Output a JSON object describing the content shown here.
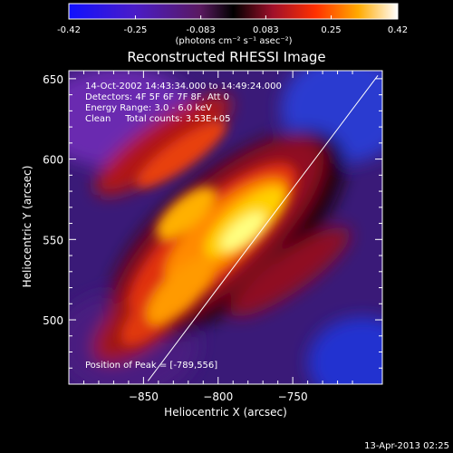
{
  "chart_data": {
    "type": "heatmap",
    "title": "Reconstructed RHESSI Image",
    "xlabel": "Heliocentric X (arcsec)",
    "ylabel": "Heliocentric Y (arcsec)",
    "colorbar": {
      "min": -0.42,
      "max": 0.42,
      "ticks": [
        "-0.42",
        "-0.25",
        "-0.083",
        "0.083",
        "0.25",
        "0.42"
      ],
      "tick_values": [
        -0.42,
        -0.25,
        -0.083,
        0.083,
        0.25,
        0.42
      ],
      "unit_label": "(photons cm⁻² s⁻¹ asec⁻²)"
    },
    "xlim": [
      -900,
      -690
    ],
    "ylim": [
      460,
      655
    ],
    "xticks": [
      -850,
      -800,
      -750
    ],
    "xtick_labels": [
      "−850",
      "−800",
      "−750"
    ],
    "yticks": [
      500,
      550,
      600,
      650
    ],
    "ytick_labels": [
      "500",
      "550",
      "600",
      "650"
    ],
    "annotations": [
      "14-Oct-2002 14:43:34.000 to 14:49:24.000",
      "Detectors: 4F 5F 6F 7F 8F, Att 0",
      "Energy Range: 3.0 - 6.0 keV",
      "Clean     Total counts: 3.53E+05"
    ],
    "peak_label": "Position of Peak = [-789,556]",
    "peak": [
      -789,
      556
    ],
    "limb_line": [
      [
        -847,
        462
      ],
      [
        -693,
        652
      ]
    ],
    "grid": false
  },
  "footer_date": "13-Apr-2013 02:25"
}
